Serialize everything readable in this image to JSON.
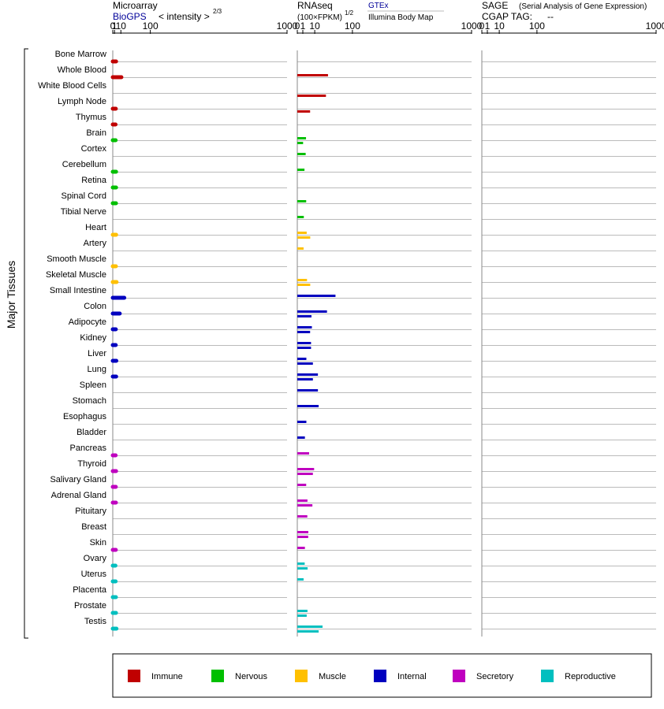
{
  "header": {
    "microarray_title": "Microarray",
    "microarray_source": "BioGPS",
    "microarray_units": "< intensity >",
    "microarray_exponent": "2/3",
    "rnaseq_title": "RNAseq",
    "rnaseq_units": "(100×FPKM)",
    "rnaseq_exponent": "1/2",
    "rnaseq_source_gtex": "GTEx",
    "rnaseq_source_ibm": "Illumina Body Map",
    "sage_title": "SAGE",
    "sage_subtitle": "(Serial Analysis of Gene Expression)",
    "cgap_label": "CGAP TAG:",
    "cgap_value": "--",
    "side_label": "Major Tissues"
  },
  "colors": {
    "Immune": "#c00000",
    "Nervous": "#00bf00",
    "Muscle": "#ffc000",
    "Internal": "#0000bf",
    "Secretory": "#bf00bf",
    "Reproductive": "#00bfbf"
  },
  "chart_data": {
    "type": "bar",
    "axis_ticks": [
      "0",
      "1",
      "10",
      "100",
      "1000"
    ],
    "legend": [
      "Immune",
      "Nervous",
      "Muscle",
      "Internal",
      "Secretory",
      "Reproductive"
    ],
    "legend_position": "bottom",
    "rows": [
      {
        "tissue": "Bone Marrow",
        "group": "Immune",
        "microarray": 2.6,
        "gtex": null,
        "ibm": null
      },
      {
        "tissue": "Whole Blood",
        "group": "Immune",
        "microarray": 11,
        "gtex": 31,
        "ibm": null
      },
      {
        "tissue": "White Blood Cells",
        "group": "Immune",
        "microarray": null,
        "gtex": null,
        "ibm": 27
      },
      {
        "tissue": "Lymph Node",
        "group": "Immune",
        "microarray": 2.3,
        "gtex": null,
        "ibm": 5.4
      },
      {
        "tissue": "Thymus",
        "group": "Immune",
        "microarray": 2.0,
        "gtex": null,
        "ibm": null
      },
      {
        "tissue": "Brain",
        "group": "Nervous",
        "microarray": 2.1,
        "gtex": 2.5,
        "ibm": 1.1
      },
      {
        "tissue": "Cortex",
        "group": "Nervous",
        "microarray": null,
        "gtex": 2.3,
        "ibm": null
      },
      {
        "tissue": "Cerebellum",
        "group": "Nervous",
        "microarray": 2.6,
        "gtex": 1.7,
        "ibm": null
      },
      {
        "tissue": "Retina",
        "group": "Nervous",
        "microarray": 2.6,
        "gtex": null,
        "ibm": null
      },
      {
        "tissue": "Spinal Cord",
        "group": "Nervous",
        "microarray": 2.5,
        "gtex": 2.6,
        "ibm": null
      },
      {
        "tissue": "Tibial Nerve",
        "group": "Nervous",
        "microarray": null,
        "gtex": 1.4,
        "ibm": null
      },
      {
        "tissue": "Heart",
        "group": "Muscle",
        "microarray": 2.7,
        "gtex": 2.9,
        "ibm": 5.5
      },
      {
        "tissue": "Artery",
        "group": "Muscle",
        "microarray": null,
        "gtex": 1.3,
        "ibm": null
      },
      {
        "tissue": "Smooth Muscle",
        "group": "Muscle",
        "microarray": 2.4,
        "gtex": null,
        "ibm": null
      },
      {
        "tissue": "Skeletal Muscle",
        "group": "Muscle",
        "microarray": 3.2,
        "gtex": 3.1,
        "ibm": 5.5
      },
      {
        "tissue": "Small Intestine",
        "group": "Internal",
        "microarray": 17,
        "gtex": 48,
        "ibm": null
      },
      {
        "tissue": "Colon",
        "group": "Internal",
        "microarray": 8.0,
        "gtex": 29,
        "ibm": 6.6
      },
      {
        "tissue": "Adipocyte",
        "group": "Internal",
        "microarray": 2.3,
        "gtex": 7.0,
        "ibm": 5.4
      },
      {
        "tissue": "Kidney",
        "group": "Internal",
        "microarray": 2.2,
        "gtex": 6.2,
        "ibm": 6.2
      },
      {
        "tissue": "Liver",
        "group": "Internal",
        "microarray": 2.9,
        "gtex": 2.7,
        "ibm": 8.0
      },
      {
        "tissue": "Lung",
        "group": "Internal",
        "microarray": 2.7,
        "gtex": 14,
        "ibm": 8.0
      },
      {
        "tissue": "Spleen",
        "group": "Internal",
        "microarray": null,
        "gtex": 14,
        "ibm": null
      },
      {
        "tissue": "Stomach",
        "group": "Internal",
        "microarray": null,
        "gtex": 15,
        "ibm": null
      },
      {
        "tissue": "Esophagus",
        "group": "Internal",
        "microarray": null,
        "gtex": 2.7,
        "ibm": null
      },
      {
        "tissue": "Bladder",
        "group": "Internal",
        "microarray": null,
        "gtex": 1.9,
        "ibm": null
      },
      {
        "tissue": "Pancreas",
        "group": "Secretory",
        "microarray": 2.1,
        "gtex": 4.6,
        "ibm": null
      },
      {
        "tissue": "Thyroid",
        "group": "Secretory",
        "microarray": 2.6,
        "gtex": 9.3,
        "ibm": 8.0
      },
      {
        "tissue": "Salivary Gland",
        "group": "Secretory",
        "microarray": 2.3,
        "gtex": 2.6,
        "ibm": null
      },
      {
        "tissue": "Adrenal Gland",
        "group": "Secretory",
        "microarray": 2.4,
        "gtex": 3.4,
        "ibm": 7.5
      },
      {
        "tissue": "Pituitary",
        "group": "Secretory",
        "microarray": null,
        "gtex": 3.3,
        "ibm": null
      },
      {
        "tissue": "Breast",
        "group": "Secretory",
        "microarray": null,
        "gtex": 4.0,
        "ibm": 3.9
      },
      {
        "tissue": "Skin",
        "group": "Secretory",
        "microarray": 2.3,
        "gtex": 1.9,
        "ibm": null
      },
      {
        "tissue": "Ovary",
        "group": "Reproductive",
        "microarray": 1.9,
        "gtex": 1.8,
        "ibm": 3.5
      },
      {
        "tissue": "Uterus",
        "group": "Reproductive",
        "microarray": 2.1,
        "gtex": 1.3,
        "ibm": null
      },
      {
        "tissue": "Placenta",
        "group": "Reproductive",
        "microarray": 2.4,
        "gtex": null,
        "ibm": null
      },
      {
        "tissue": "Prostate",
        "group": "Reproductive",
        "microarray": 2.5,
        "gtex": 3.4,
        "ibm": 2.9
      },
      {
        "tissue": "Testis",
        "group": "Reproductive",
        "microarray": 3.1,
        "gtex": 21,
        "ibm": 15
      }
    ]
  }
}
